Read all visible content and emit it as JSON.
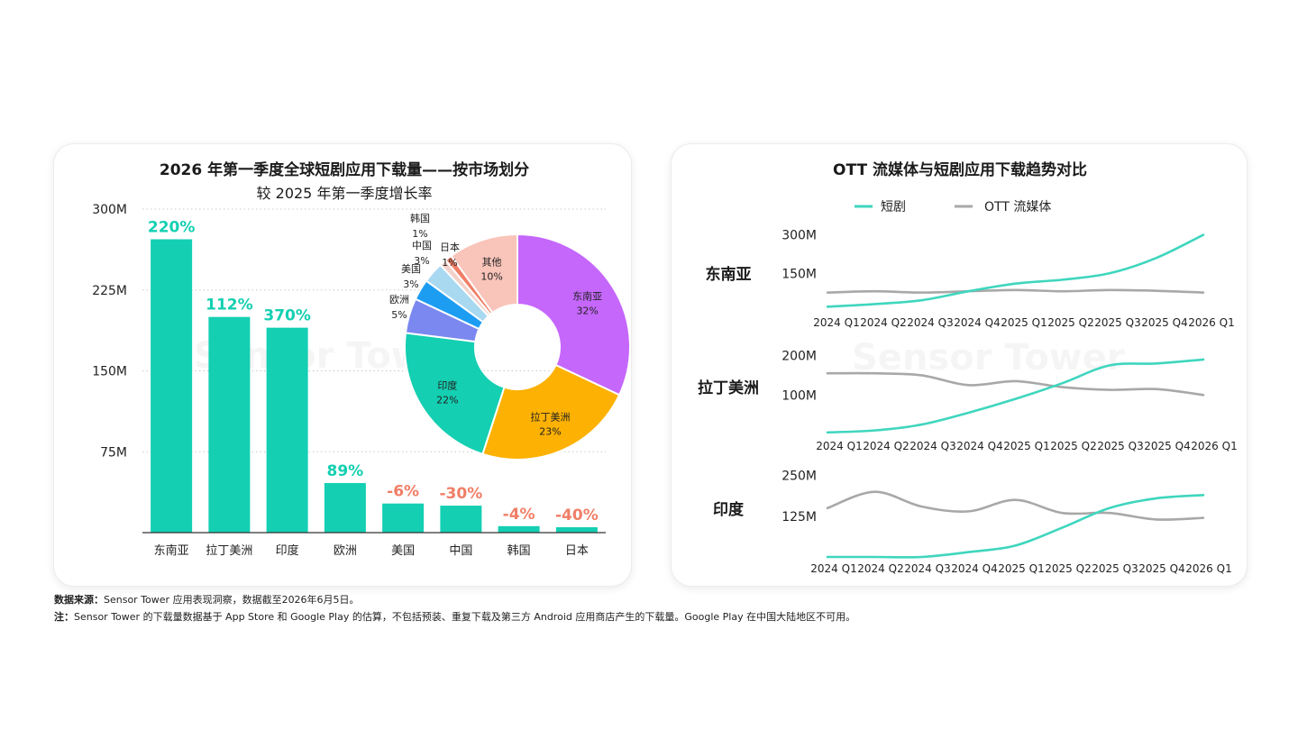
{
  "left_panel": {
    "title": "2026 年第一季度全球短剧应用下载量——按市场划分",
    "subtitle": "较 2025 年第一季度增长率",
    "watermark": "Sensor Tower"
  },
  "right_panel": {
    "title": "OTT 流媒体与短剧应用下载趋势对比",
    "watermark": "Sensor Tower",
    "legend": [
      {
        "label": "短剧",
        "color": "#3fd6be"
      },
      {
        "label": "OTT 流媒体",
        "color": "#a8a8a8"
      }
    ]
  },
  "colors": {
    "bar": "#14cfb2",
    "growth_positive": "#14cfb2",
    "growth_negative": "#f07e66",
    "short_drama_line": "#3fd6be",
    "ott_line": "#a8a8a8"
  },
  "chart_data": [
    {
      "type": "bar",
      "title": "2026 年第一季度全球短剧应用下载量——按市场划分",
      "subtitle": "较 2025 年第一季度增长率",
      "categories": [
        "东南亚",
        "拉丁美洲",
        "印度",
        "欧洲",
        "美国",
        "中国",
        "韩国",
        "日本"
      ],
      "values": [
        272,
        200,
        190,
        46,
        27,
        25,
        6,
        5
      ],
      "growth_labels": [
        "220%",
        "112%",
        "370%",
        "89%",
        "-6%",
        "-30%",
        "-4%",
        "-40%"
      ],
      "growth_sign": [
        "pos",
        "pos",
        "pos",
        "pos",
        "neg",
        "neg",
        "neg",
        "neg"
      ],
      "ylim": [
        0,
        300
      ],
      "yticks": [
        "300M",
        "225M",
        "150M",
        "75M"
      ],
      "ytick_values": [
        300,
        225,
        150,
        75
      ],
      "grid": "dotted"
    },
    {
      "type": "pie",
      "style": "donut",
      "slices": [
        {
          "name": "东南亚",
          "pct": "32%",
          "value": 32,
          "color": "#c567fb",
          "label_inside": true
        },
        {
          "name": "拉丁美洲",
          "pct": "23%",
          "value": 23,
          "color": "#fdb103",
          "label_inside": true
        },
        {
          "name": "印度",
          "pct": "22%",
          "value": 22,
          "color": "#14cfb2",
          "label_inside": true
        },
        {
          "name": "欧洲",
          "pct": "5%",
          "value": 5,
          "color": "#7a88f0",
          "label_inside": false
        },
        {
          "name": "美国",
          "pct": "3%",
          "value": 3,
          "color": "#1c9df2",
          "label_inside": false
        },
        {
          "name": "中国",
          "pct": "3%",
          "value": 3,
          "color": "#a9d9f1",
          "label_inside": false
        },
        {
          "name": "韩国",
          "pct": "1%",
          "value": 1,
          "color": "#f3d1c9",
          "label_inside": false
        },
        {
          "name": "日本",
          "pct": "1%",
          "value": 1,
          "color": "#f07e66",
          "label_inside": false
        },
        {
          "name": "其他",
          "pct": "10%",
          "value": 10,
          "color": "#f9c4ba",
          "label_inside": true
        }
      ]
    },
    {
      "type": "line",
      "region": "东南亚",
      "x": [
        "2024 Q1",
        "2024 Q2",
        "2024 Q3",
        "2024 Q4",
        "2025 Q1",
        "2025 Q2",
        "2025 Q3",
        "2025 Q4",
        "2026 Q1"
      ],
      "yticks": [
        "300M",
        "150M"
      ],
      "ytick_values": [
        300,
        150
      ],
      "ylim": [
        0,
        330
      ],
      "series": [
        {
          "name": "短剧",
          "values": [
            20,
            30,
            45,
            80,
            110,
            125,
            150,
            210,
            300
          ]
        },
        {
          "name": "OTT 流媒体",
          "values": [
            75,
            80,
            75,
            80,
            85,
            80,
            85,
            82,
            75
          ]
        }
      ]
    },
    {
      "type": "line",
      "region": "拉丁美洲",
      "x": [
        "2024 Q1",
        "2024 Q2",
        "2024 Q3",
        "2024 Q4",
        "2025 Q1",
        "2025 Q2",
        "2025 Q3",
        "2025 Q4",
        "2026 Q1"
      ],
      "yticks": [
        "200M",
        "100M"
      ],
      "ytick_values": [
        200,
        100
      ],
      "ylim": [
        0,
        215
      ],
      "series": [
        {
          "name": "短剧",
          "values": [
            5,
            10,
            25,
            55,
            90,
            130,
            175,
            180,
            190
          ]
        },
        {
          "name": "OTT 流媒体",
          "values": [
            155,
            155,
            150,
            125,
            135,
            120,
            113,
            115,
            100
          ]
        }
      ]
    },
    {
      "type": "line",
      "region": "印度",
      "x": [
        "2024 Q1",
        "2024 Q2",
        "2024 Q3",
        "2024 Q4",
        "2025 Q1",
        "2025 Q2",
        "2025 Q3",
        "2025 Q4",
        "2026 Q1"
      ],
      "yticks": [
        "250M",
        "125M"
      ],
      "ytick_values": [
        250,
        125
      ],
      "ylim": [
        0,
        260
      ],
      "series": [
        {
          "name": "短剧",
          "values": [
            0,
            0,
            0,
            15,
            35,
            90,
            150,
            180,
            190
          ]
        },
        {
          "name": "OTT 流媒体",
          "values": [
            150,
            200,
            155,
            140,
            175,
            135,
            135,
            115,
            120
          ]
        }
      ]
    }
  ],
  "footnotes": {
    "source_label": "数据来源：",
    "source_text": "Sensor Tower 应用表现洞察，数据截至2026年6月5日。",
    "note_label": "注：",
    "note_text": "Sensor Tower 的下载量数据基于 App Store 和 Google Play 的估算，不包括预装、重复下载及第三方 Android 应用商店产生的下载量。Google Play 在中国大陆地区不可用。"
  }
}
